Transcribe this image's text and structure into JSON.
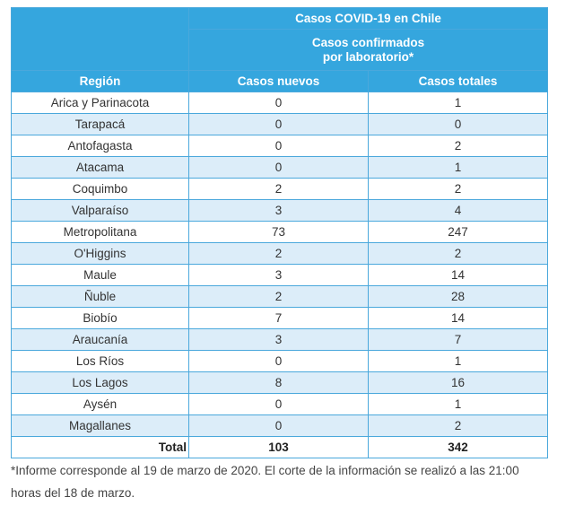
{
  "header": {
    "title": "Casos COVID-19 en Chile",
    "subtitle": [
      "Casos confirmados",
      "por laboratorio*"
    ]
  },
  "table": {
    "columns": [
      "Región",
      "Casos nuevos",
      "Casos totales"
    ],
    "rows": [
      [
        "Arica y Parinacota",
        0,
        1
      ],
      [
        "Tarapacá",
        0,
        0
      ],
      [
        "Antofagasta",
        0,
        2
      ],
      [
        "Atacama",
        0,
        1
      ],
      [
        "Coquimbo",
        2,
        2
      ],
      [
        "Valparaíso",
        3,
        4
      ],
      [
        "Metropolitana",
        73,
        247
      ],
      [
        "O'Higgins",
        2,
        2
      ],
      [
        "Maule",
        3,
        14
      ],
      [
        "Ñuble",
        2,
        28
      ],
      [
        "Biobío",
        7,
        14
      ],
      [
        "Araucanía",
        3,
        7
      ],
      [
        "Los Ríos",
        0,
        1
      ],
      [
        "Los Lagos",
        8,
        16
      ],
      [
        "Aysén",
        0,
        1
      ],
      [
        "Magallanes",
        0,
        2
      ]
    ],
    "total": [
      "Total",
      103,
      342
    ]
  },
  "footnote": "*Informe corresponde al 19 de marzo de 2020. El corte de la información se realizó a las 21:00 horas del 18 de marzo."
}
